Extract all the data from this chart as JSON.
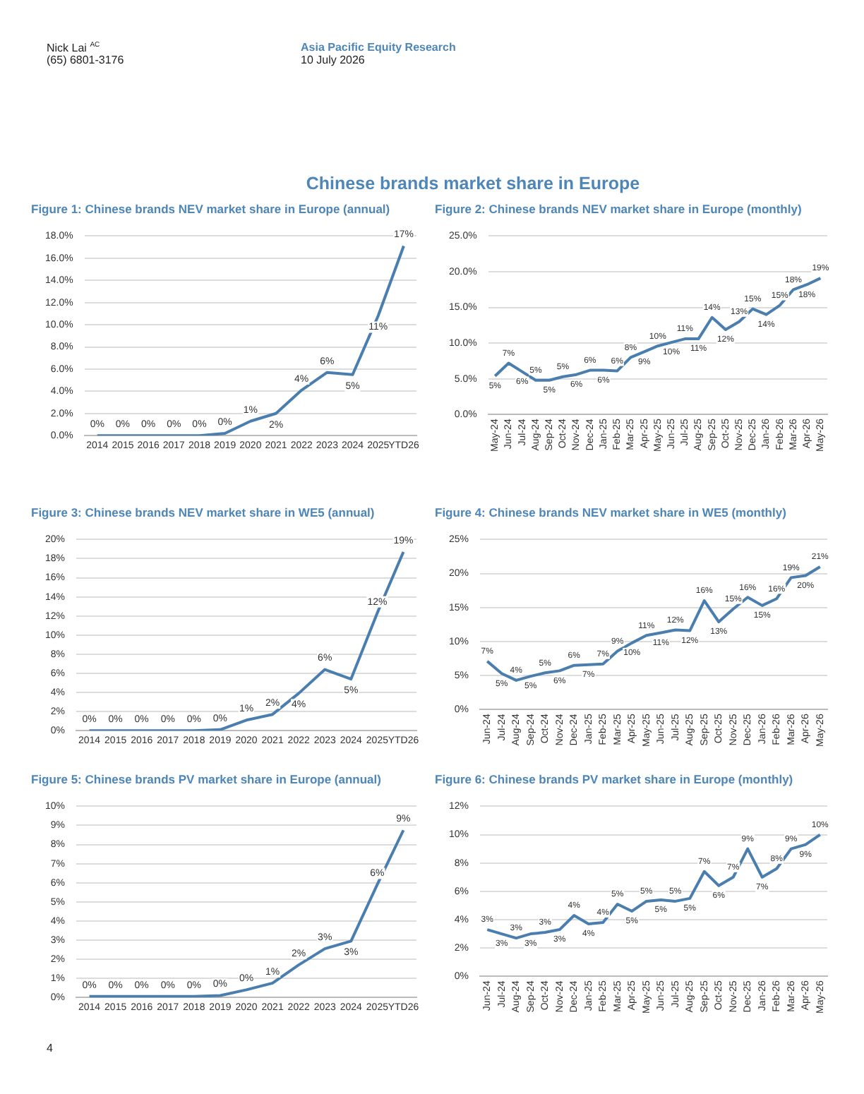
{
  "chart_data": [
    {
      "type": "line",
      "title": "Figure 1: Chinese brands NEV market share in Europe (annual)",
      "annotations": [
        "Nick Lai $^{AC}$",
        "(65) 6801-3176",
        "Asia Pacific Equity Research",
        "10 July 2026",
        "Chinese brands market share in Europe",
        "4"
      ],
      "categories": [
        "2014",
        "2015",
        "2016",
        "2017",
        "2018",
        "2019",
        "2020",
        "2021",
        "2022",
        "2023",
        "2024",
        "2025",
        "YTD26"
      ],
      "values": [
        0,
        0,
        0,
        0,
        0,
        0.2,
        1.3,
        2.0,
        4.1,
        5.7,
        5.5,
        10.8,
        17.1
      ],
      "value_labels": [
        "0%",
        "0%",
        "0%",
        "0%",
        "0%",
        "0%",
        "1%",
        "2%",
        "4%",
        "6%",
        "5%",
        "11%",
        "17%"
      ],
      "color": "#4a7eae",
      "marker": "none",
      "grid": "y",
      "ylim": [
        0,
        18
      ],
      "yticks": [
        {
          "value": 0,
          "label": "0.0%"
        },
        {
          "value": 2,
          "label": "2.0%"
        },
        {
          "value": 4,
          "label": "4.0%"
        },
        {
          "value": 6,
          "label": "6.0%"
        },
        {
          "value": 8,
          "label": "8.0%"
        },
        {
          "value": 10,
          "label": "10.0%"
        },
        {
          "value": 12,
          "label": "12.0%"
        },
        {
          "value": 14,
          "label": "14.0%"
        },
        {
          "value": 16,
          "label": "16.0%"
        },
        {
          "value": 18,
          "label": "18.0%"
        }
      ]
    },
    {
      "type": "line",
      "title": "Figure 2: Chinese brands NEV market share in Europe (monthly)",
      "categories": [
        "May-24",
        "Jun-24",
        "Jul-24",
        "Aug-24",
        "Sep-24",
        "Oct-24",
        "Nov-24",
        "Dec-24",
        "Jan-25",
        "Feb-25",
        "Mar-25",
        "Apr-25",
        "May-25",
        "Jun-25",
        "Jul-25",
        "Aug-25",
        "Sep-25",
        "Oct-25",
        "Nov-25",
        "Dec-25",
        "Jan-26",
        "Feb-26",
        "Mar-26",
        "Apr-26",
        "May-26"
      ],
      "values": [
        5.4,
        7.2,
        6.0,
        4.8,
        4.8,
        5.3,
        5.6,
        6.2,
        6.2,
        6.1,
        8.0,
        8.8,
        9.6,
        10.1,
        10.6,
        10.6,
        13.6,
        11.9,
        13.0,
        14.8,
        14.0,
        15.3,
        17.5,
        18.2,
        19.1
      ],
      "value_labels": [
        "5%",
        "7%",
        "6%",
        "5%",
        "5%",
        "5%",
        "6%",
        "6%",
        "6%",
        "6%",
        "8%",
        "9%",
        "10%",
        "10%",
        "11%",
        "11%",
        "14%",
        "12%",
        "13%",
        "15%",
        "14%",
        "15%",
        "18%",
        "18%",
        "19%"
      ],
      "color": "#4a7eae",
      "marker": "none",
      "grid": "y",
      "ylim": [
        0,
        25
      ],
      "yticks": [
        {
          "value": 0,
          "label": "0.0%"
        },
        {
          "value": 5,
          "label": "5.0%"
        },
        {
          "value": 10,
          "label": "10.0%"
        },
        {
          "value": 15,
          "label": "15.0%"
        },
        {
          "value": 20,
          "label": "20.0%"
        },
        {
          "value": 25,
          "label": "25.0%"
        }
      ]
    },
    {
      "type": "line",
      "title": "Figure 3: Chinese brands NEV market share in WE5 (annual)",
      "categories": [
        "2014",
        "2015",
        "2016",
        "2017",
        "2018",
        "2019",
        "2020",
        "2021",
        "2022",
        "2023",
        "2024",
        "2025",
        "YTD26"
      ],
      "values": [
        0,
        0,
        0,
        0,
        0,
        0.1,
        1.1,
        1.7,
        3.9,
        6.4,
        5.4,
        12.3,
        18.7
      ],
      "value_labels": [
        "0%",
        "0%",
        "0%",
        "0%",
        "0%",
        "0%",
        "1%",
        "2%",
        "4%",
        "6%",
        "5%",
        "12%",
        "19%"
      ],
      "color": "#4a7eae",
      "marker": "none",
      "grid": "y",
      "ylim": [
        0,
        20
      ],
      "yticks": [
        {
          "value": 0,
          "label": "0%"
        },
        {
          "value": 2,
          "label": "2%"
        },
        {
          "value": 4,
          "label": "4%"
        },
        {
          "value": 6,
          "label": "6%"
        },
        {
          "value": 8,
          "label": "8%"
        },
        {
          "value": 10,
          "label": "10%"
        },
        {
          "value": 12,
          "label": "12%"
        },
        {
          "value": 14,
          "label": "14%"
        },
        {
          "value": 16,
          "label": "16%"
        },
        {
          "value": 18,
          "label": "18%"
        },
        {
          "value": 20,
          "label": "20%"
        }
      ]
    },
    {
      "type": "line",
      "title": "Figure 4: Chinese brands NEV market share in WE5 (monthly)",
      "categories": [
        "Jun-24",
        "Jul-24",
        "Aug-24",
        "Sep-24",
        "Oct-24",
        "Nov-24",
        "Dec-24",
        "Jan-25",
        "Feb-25",
        "Mar-25",
        "Apr-25",
        "May-25",
        "Jun-25",
        "Jul-25",
        "Aug-25",
        "Sep-25",
        "Oct-25",
        "Nov-25",
        "Dec-25",
        "Jan-26",
        "Feb-26",
        "Mar-26",
        "Apr-26",
        "May-26"
      ],
      "values": [
        7.1,
        5.3,
        4.3,
        4.9,
        5.4,
        5.7,
        6.5,
        6.6,
        6.7,
        8.6,
        9.8,
        10.9,
        11.3,
        11.7,
        11.6,
        16.0,
        12.9,
        14.8,
        16.5,
        15.3,
        16.3,
        19.4,
        19.7,
        21.0
      ],
      "value_labels": [
        "7%",
        "5%",
        "4%",
        "5%",
        "5%",
        "6%",
        "6%",
        "7%",
        "7%",
        "9%",
        "10%",
        "11%",
        "11%",
        "12%",
        "12%",
        "16%",
        "13%",
        "15%",
        "16%",
        "15%",
        "16%",
        "19%",
        "20%",
        "21%"
      ],
      "color": "#4a7eae",
      "marker": "none",
      "grid": "y",
      "ylim": [
        0,
        25
      ],
      "yticks": [
        {
          "value": 0,
          "label": "0%"
        },
        {
          "value": 5,
          "label": "5%"
        },
        {
          "value": 10,
          "label": "10%"
        },
        {
          "value": 15,
          "label": "15%"
        },
        {
          "value": 20,
          "label": "20%"
        },
        {
          "value": 25,
          "label": "25%"
        }
      ]
    },
    {
      "type": "line",
      "title": "Figure 5: Chinese brands PV market share in Europe (annual)",
      "categories": [
        "2014",
        "2015",
        "2016",
        "2017",
        "2018",
        "2019",
        "2020",
        "2021",
        "2022",
        "2023",
        "2024",
        "2025",
        "YTD26"
      ],
      "values": [
        0.05,
        0.05,
        0.05,
        0.05,
        0.05,
        0.1,
        0.4,
        0.75,
        1.7,
        2.55,
        2.95,
        5.9,
        8.75
      ],
      "value_labels": [
        "0%",
        "0%",
        "0%",
        "0%",
        "0%",
        "0%",
        "0%",
        "1%",
        "2%",
        "3%",
        "3%",
        "6%",
        "9%"
      ],
      "color": "#4a7eae",
      "marker": "none",
      "grid": "y",
      "ylim": [
        0,
        10
      ],
      "yticks": [
        {
          "value": 0,
          "label": "0%"
        },
        {
          "value": 1,
          "label": "1%"
        },
        {
          "value": 2,
          "label": "2%"
        },
        {
          "value": 3,
          "label": "3%"
        },
        {
          "value": 4,
          "label": "4%"
        },
        {
          "value": 5,
          "label": "5%"
        },
        {
          "value": 6,
          "label": "6%"
        },
        {
          "value": 7,
          "label": "7%"
        },
        {
          "value": 8,
          "label": "8%"
        },
        {
          "value": 9,
          "label": "9%"
        },
        {
          "value": 10,
          "label": "10%"
        }
      ]
    },
    {
      "type": "line",
      "title": "Figure 6: Chinese brands PV market share in Europe (monthly)",
      "categories": [
        "Jun-24",
        "Jul-24",
        "Aug-24",
        "Sep-24",
        "Oct-24",
        "Nov-24",
        "Dec-24",
        "Jan-25",
        "Feb-25",
        "Mar-25",
        "Apr-25",
        "May-25",
        "Jun-25",
        "Jul-25",
        "Aug-25",
        "Sep-25",
        "Oct-25",
        "Nov-25",
        "Dec-25",
        "Jan-26",
        "Feb-26",
        "Mar-26",
        "Apr-26",
        "May-26"
      ],
      "values": [
        3.3,
        3.0,
        2.7,
        3.0,
        3.1,
        3.3,
        4.3,
        3.7,
        3.8,
        5.1,
        4.6,
        5.3,
        5.4,
        5.3,
        5.5,
        7.4,
        6.4,
        7.0,
        9.0,
        7.0,
        7.6,
        9.0,
        9.3,
        10.0
      ],
      "value_labels": [
        "3%",
        "3%",
        "3%",
        "3%",
        "3%",
        "3%",
        "4%",
        "4%",
        "4%",
        "5%",
        "5%",
        "5%",
        "5%",
        "5%",
        "5%",
        "7%",
        "6%",
        "7%",
        "9%",
        "7%",
        "8%",
        "9%",
        "9%",
        "10%"
      ],
      "color": "#4a7eae",
      "marker": "none",
      "grid": "y",
      "ylim": [
        0,
        12
      ],
      "yticks": [
        {
          "value": 0,
          "label": "0%"
        },
        {
          "value": 2,
          "label": "2%"
        },
        {
          "value": 4,
          "label": "4%"
        },
        {
          "value": 6,
          "label": "6%"
        },
        {
          "value": 8,
          "label": "8%"
        },
        {
          "value": 10,
          "label": "10%"
        },
        {
          "value": 12,
          "label": "12%"
        }
      ]
    }
  ]
}
